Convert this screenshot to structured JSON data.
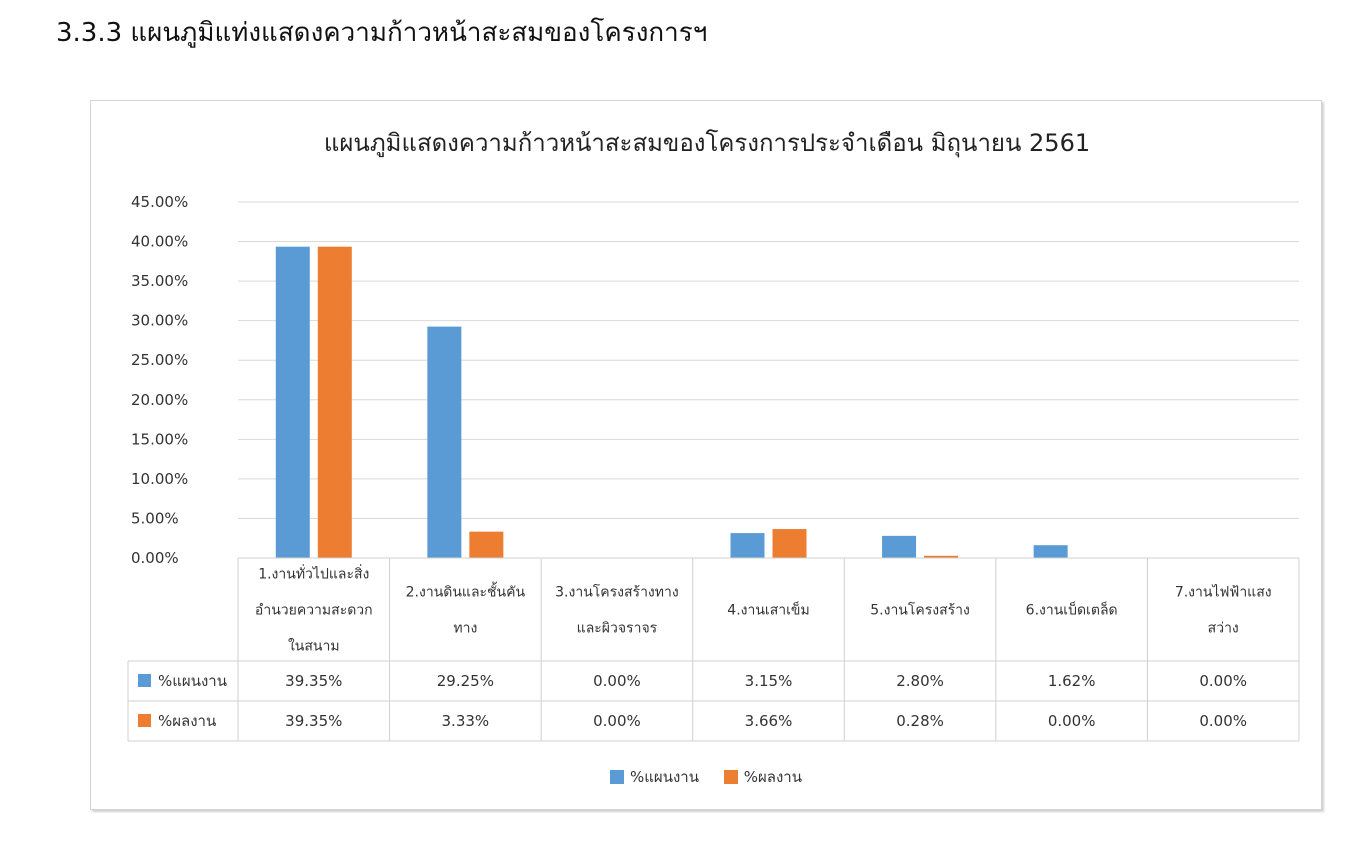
{
  "heading": "3.3.3  แผนภูมิแท่งแสดงความก้าวหน้าสะสมของโครงการฯ",
  "chart_data": {
    "type": "bar",
    "title": "แผนภูมิแสดงความก้าวหน้าสะสมของโครงการประจำเดือน มิถุนายน 2561",
    "categories": [
      [
        "1.งานทั่วไปและสิ่ง",
        "อำนวยความสะดวก",
        "ในสนาม"
      ],
      [
        "2.งานดินและชั้นคัน",
        "ทาง"
      ],
      [
        "3.งานโครงสร้างทาง",
        "และผิวจราจร"
      ],
      [
        "4.งานเสาเข็ม"
      ],
      [
        "5.งานโครงสร้าง"
      ],
      [
        "6.งานเบ็ดเตล็ด"
      ],
      [
        "7.งานไฟฟ้าแสง",
        "สว่าง"
      ]
    ],
    "series": [
      {
        "name": "%แผนงาน",
        "color": "#5b9bd5",
        "values": [
          39.35,
          29.25,
          0.0,
          3.15,
          2.8,
          1.62,
          0.0
        ],
        "labels": [
          "39.35%",
          "29.25%",
          "0.00%",
          "3.15%",
          "2.80%",
          "1.62%",
          "0.00%"
        ]
      },
      {
        "name": "%ผลงาน",
        "color": "#ed7d31",
        "values": [
          39.35,
          3.33,
          0.0,
          3.66,
          0.28,
          0.0,
          0.0
        ],
        "labels": [
          "39.35%",
          "3.33%",
          "0.00%",
          "3.66%",
          "0.28%",
          "0.00%",
          "0.00%"
        ]
      }
    ],
    "ylim": [
      0,
      45
    ],
    "yticks": [
      "0.00%",
      "5.00%",
      "10.00%",
      "15.00%",
      "20.00%",
      "25.00%",
      "30.00%",
      "35.00%",
      "40.00%",
      "45.00%"
    ],
    "grid": true,
    "legend_position": "bottom",
    "data_table": true
  }
}
